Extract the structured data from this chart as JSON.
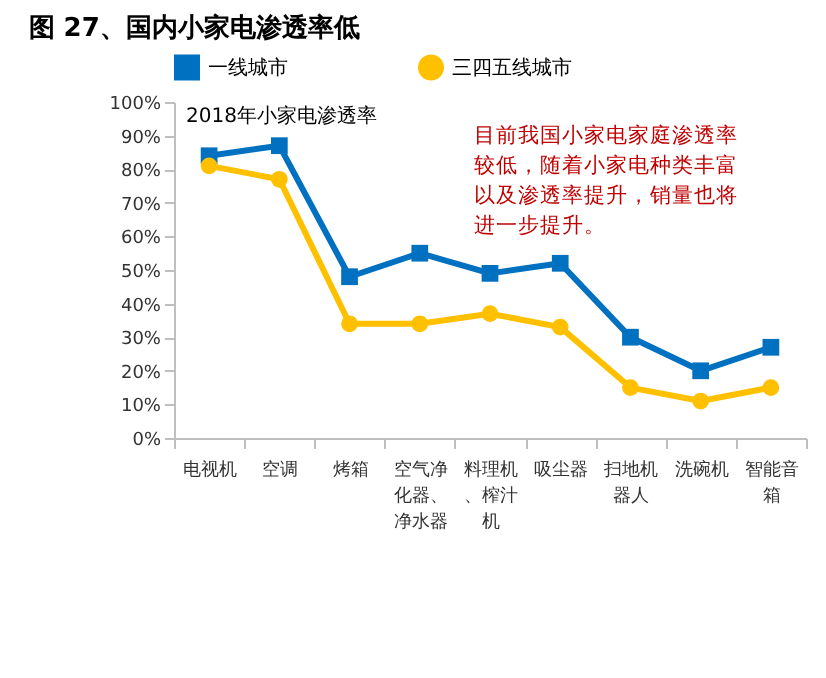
{
  "chart_data": {
    "type": "line",
    "title": "图 27、国内小家电渗透率低",
    "categories": [
      "电视机",
      "空调",
      "烤箱",
      "空气净化器、净水器",
      "料理机、榨汁机",
      "吸尘器",
      "扫地机器人",
      "洗碗机",
      "智能音箱"
    ],
    "series": [
      {
        "name": "一线城市",
        "color": "#0070c0",
        "marker": "square",
        "values": [
          84,
          87,
          48,
          55,
          49,
          52,
          30,
          20,
          27
        ]
      },
      {
        "name": "三四五线城市",
        "color": "#ffc000",
        "marker": "circle",
        "values": [
          81,
          77,
          34,
          34,
          37,
          33,
          15,
          11,
          15
        ]
      }
    ],
    "ylim": [
      0,
      100
    ],
    "yticks": [
      {
        "value": 0,
        "label": "0%"
      },
      {
        "value": 10,
        "label": "10%"
      },
      {
        "value": 20,
        "label": "20%"
      },
      {
        "value": 30,
        "label": "30%"
      },
      {
        "value": 40,
        "label": "40%"
      },
      {
        "value": 50,
        "label": "50%"
      },
      {
        "value": 60,
        "label": "60%"
      },
      {
        "value": 70,
        "label": "70%"
      },
      {
        "value": 80,
        "label": "80%"
      },
      {
        "value": 90,
        "label": "90%"
      },
      {
        "value": 100,
        "label": "100%"
      }
    ],
    "grid": false,
    "legend": "top",
    "line_style": "solid",
    "annotations": [
      "2018年小家电渗透率",
      "目前我国小家电家庭渗透率较低，随着小家电种类丰富以及渗透率提升，销量也将进一步提升。"
    ]
  }
}
